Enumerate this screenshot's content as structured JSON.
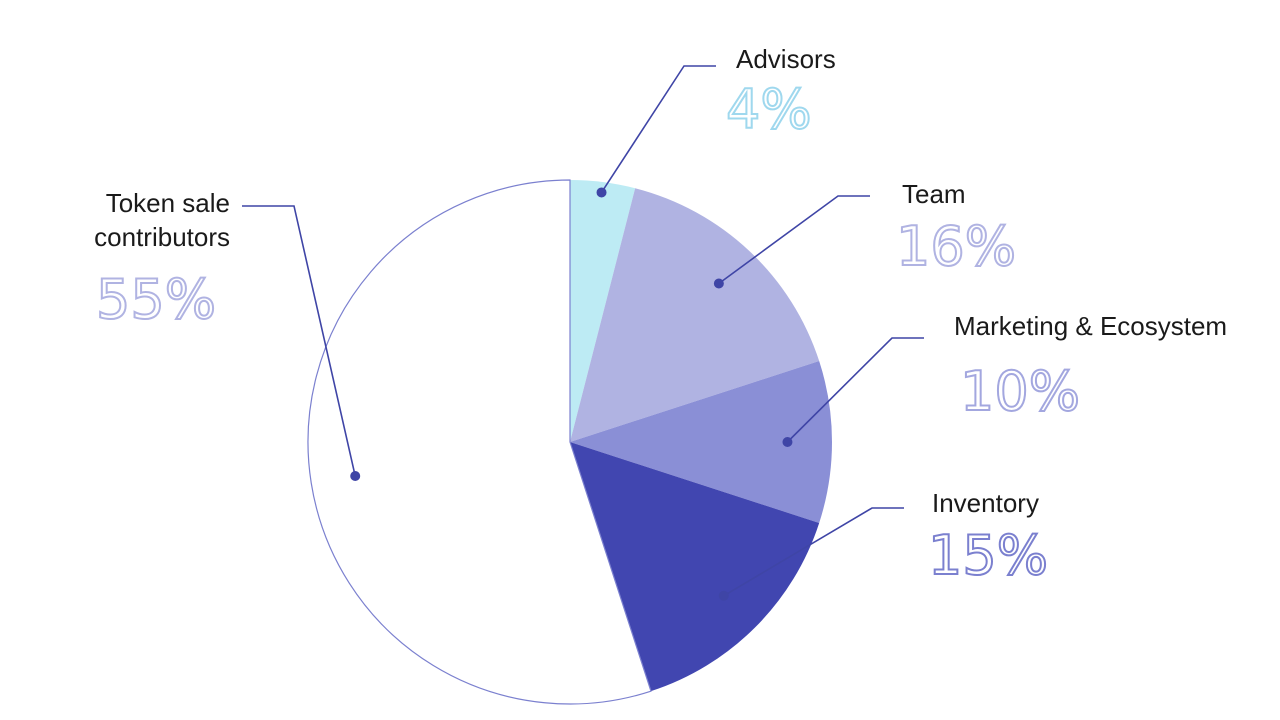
{
  "chart_data": {
    "type": "pie",
    "title": "",
    "slices": [
      {
        "name": "Advisors",
        "value": 4,
        "display": "4%",
        "fill": "#bdebf4",
        "text_color": "#9fd8ee"
      },
      {
        "name": "Team",
        "value": 16,
        "display": "16%",
        "fill": "#b0b3e2",
        "text_color": "#b0b3e2"
      },
      {
        "name": "Marketing & Ecosystem",
        "value": 10,
        "display": "10%",
        "fill": "#8a8fd6",
        "text_color": "#a3a7df"
      },
      {
        "name": "Inventory",
        "value": 15,
        "display": "15%",
        "fill": "#4146b0",
        "text_color": "#7b80cf"
      },
      {
        "name": "Token sale contributors",
        "label_lines": [
          "Token sale",
          "contributors"
        ],
        "value": 55,
        "display": "55%",
        "fill": "#ffffff",
        "text_color": "#b0b3e2"
      }
    ],
    "outline_color": "#7b80cf",
    "leader_color": "#3f45a6"
  }
}
